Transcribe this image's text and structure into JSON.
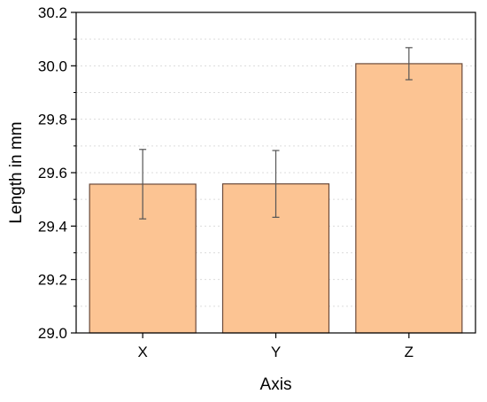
{
  "chart_data": {
    "type": "bar",
    "categories": [
      "X",
      "Y",
      "Z"
    ],
    "values": [
      29.557,
      29.558,
      30.008
    ],
    "errors": [
      0.13,
      0.125,
      0.06
    ],
    "title": "",
    "xlabel": "Axis",
    "ylabel": "Length in mm",
    "ylim": [
      29.0,
      30.2
    ],
    "yticks": [
      "29.0",
      "29.2",
      "29.4",
      "29.6",
      "29.8",
      "30.0",
      "30.2"
    ],
    "ytick_values": [
      29.0,
      29.2,
      29.4,
      29.6,
      29.8,
      30.0,
      30.2
    ],
    "grid": "horizontal dotted",
    "legend": "none",
    "bar_color": "#fcc493",
    "bar_edge_color": "#6b4a3a",
    "error_bar_color": "#555555",
    "grid_color": "#dcdcdc",
    "axis_color": "#000000"
  }
}
